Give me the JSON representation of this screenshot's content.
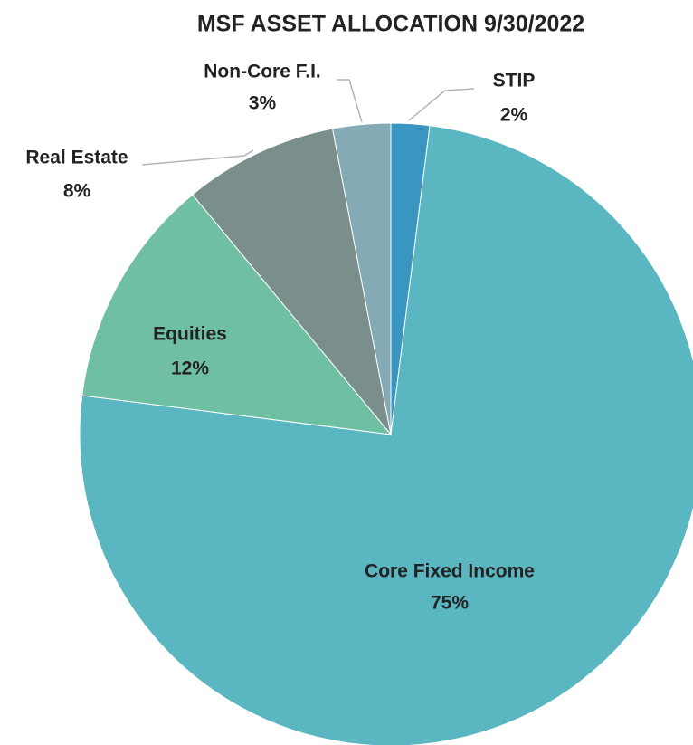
{
  "chart_data": {
    "type": "pie",
    "title": "MSF ASSET ALLOCATION 9/30/2022",
    "categories": [
      "STIP",
      "Core Fixed Income",
      "Equities",
      "Real Estate",
      "Non-Core F.I."
    ],
    "values": [
      2,
      75,
      12,
      8,
      3
    ],
    "value_labels": [
      "2%",
      "75%",
      "12%",
      "8%",
      "3%"
    ],
    "colors": [
      "#3a96c0",
      "#5ab6c0",
      "#6fbfa2",
      "#7a8e8c",
      "#84aab5"
    ]
  }
}
